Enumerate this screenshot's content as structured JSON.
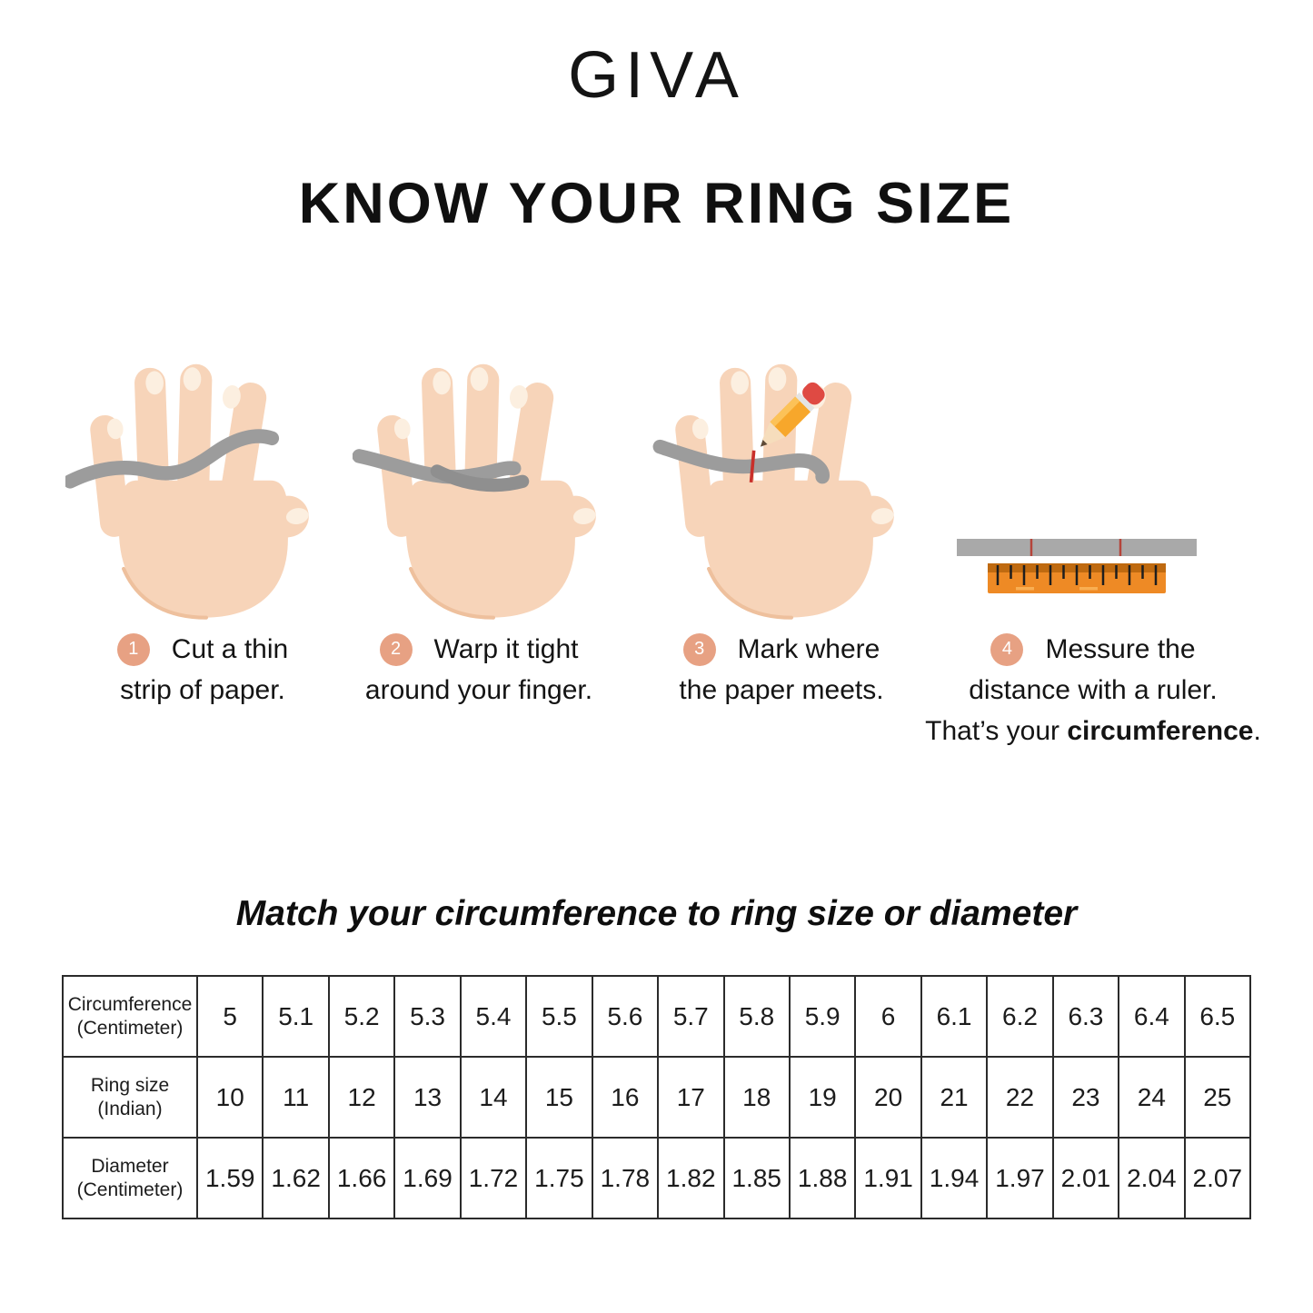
{
  "brand": "GIVA",
  "title": "KNOW YOUR RING SIZE",
  "steps": [
    {
      "number": "1",
      "icon": "hand-with-paper-strip-illustration",
      "lines": [
        "Cut a thin",
        "strip of paper."
      ]
    },
    {
      "number": "2",
      "icon": "hand-strip-wrapped-illustration",
      "lines": [
        "Warp it tight",
        "around your finger."
      ]
    },
    {
      "number": "3",
      "icon": "hand-pencil-mark-illustration",
      "lines": [
        "Mark where",
        "the paper meets."
      ]
    },
    {
      "number": "4",
      "icon": "ruler-measuring-strip-illustration",
      "lines": [
        "Messure the",
        "distance with a ruler."
      ],
      "line3_prefix": "That’s your ",
      "line3_bold": "circumference",
      "line3_suffix": "."
    }
  ],
  "subtitle": "Match your circumference to ring size or diameter",
  "table": {
    "rows": [
      {
        "header": "Circumference",
        "header_sub": "(Centimeter)",
        "values": [
          "5",
          "5.1",
          "5.2",
          "5.3",
          "5.4",
          "5.5",
          "5.6",
          "5.7",
          "5.8",
          "5.9",
          "6",
          "6.1",
          "6.2",
          "6.3",
          "6.4",
          "6.5"
        ]
      },
      {
        "header": "Ring size",
        "header_sub": "(Indian)",
        "values": [
          "10",
          "11",
          "12",
          "13",
          "14",
          "15",
          "16",
          "17",
          "18",
          "19",
          "20",
          "21",
          "22",
          "23",
          "24",
          "25"
        ]
      },
      {
        "header": "Diameter",
        "header_sub": "(Centimeter)",
        "values": [
          "1.59",
          "1.62",
          "1.66",
          "1.69",
          "1.72",
          "1.75",
          "1.78",
          "1.82",
          "1.85",
          "1.88",
          "1.91",
          "1.94",
          "1.97",
          "2.01",
          "2.04",
          "2.07"
        ]
      }
    ]
  },
  "colors": {
    "step_circle": "#E7A183",
    "strip_gray": "#9C9C9C",
    "ruler_orange": "#EE8A25",
    "ruler_band": "#BF6A10",
    "skin": "#F7D4B9",
    "nail": "#FCEFE0",
    "mark_red": "#C9302B"
  }
}
